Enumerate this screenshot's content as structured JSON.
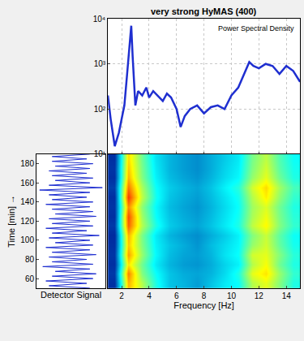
{
  "chart_data": [
    {
      "type": "line",
      "title": "very strong HyMAS (400)",
      "annotation": "Power Spectral Density",
      "x": [
        1.0,
        1.2,
        1.5,
        1.8,
        2.0,
        2.2,
        2.4,
        2.6,
        2.7,
        2.8,
        3.0,
        3.2,
        3.5,
        3.8,
        4.0,
        4.3,
        4.6,
        5.0,
        5.3,
        5.6,
        6.0,
        6.3,
        6.6,
        7.0,
        7.5,
        8.0,
        8.5,
        9.0,
        9.5,
        10.0,
        10.5,
        11.0,
        11.3,
        11.6,
        12.0,
        12.5,
        13.0,
        13.5,
        14.0,
        14.5,
        15.0
      ],
      "values": [
        200,
        60,
        15,
        30,
        60,
        120,
        600,
        3000,
        7000,
        1500,
        120,
        250,
        200,
        300,
        180,
        250,
        200,
        150,
        220,
        180,
        100,
        40,
        70,
        100,
        120,
        80,
        110,
        120,
        100,
        200,
        300,
        700,
        1100,
        900,
        800,
        1000,
        900,
        600,
        900,
        700,
        400
      ],
      "color": "#1f2fd0",
      "xlim": [
        1,
        15
      ],
      "xticks": [
        2,
        4,
        6,
        8,
        10,
        12,
        14
      ],
      "ylim": [
        10,
        10000
      ],
      "yticks": [
        {
          "value": 10,
          "label": "10¹"
        },
        {
          "value": 100,
          "label": "10²"
        },
        {
          "value": 1000,
          "label": "10³"
        },
        {
          "value": 10000,
          "label": "10⁴"
        }
      ],
      "log": "y",
      "grid": true,
      "tick_labels": "y"
    },
    {
      "type": "line",
      "xlabel": "Detector Signal",
      "ylabel": "Time [min] →",
      "x": [
        0.6,
        -0.7,
        0.5,
        -0.8,
        0.7,
        -0.6,
        0.8,
        -0.5,
        0.6,
        -0.9,
        0.7,
        -0.6,
        0.5,
        -0.7,
        0.8,
        -0.6,
        0.6,
        -0.8,
        0.7,
        -0.5,
        0.6,
        -0.7,
        0.9,
        -0.6,
        0.5,
        -0.8,
        0.7,
        -0.6,
        0.6,
        -0.7,
        0.8,
        -0.5,
        0.7,
        -0.6,
        0.6,
        -0.8,
        0.7,
        -0.6,
        0.5,
        -0.7,
        0.6,
        -1.0,
        1.0,
        -0.7,
        0.6,
        -0.5,
        0.7,
        -0.6,
        0.5,
        -0.7,
        0.6,
        -0.5,
        0.7,
        -0.6,
        0.5,
        -0.6,
        0.6
      ],
      "y": [
        50,
        52.5,
        55,
        57.5,
        60,
        62.5,
        65,
        67.5,
        70,
        72.5,
        75,
        77.5,
        80,
        82.5,
        85,
        87.5,
        90,
        92.5,
        95,
        97.5,
        100,
        102.5,
        105,
        107.5,
        110,
        112.5,
        115,
        117.5,
        120,
        122.5,
        125,
        127.5,
        130,
        132.5,
        135,
        137.5,
        140,
        142.5,
        145,
        147.5,
        150,
        152.5,
        155,
        157.5,
        160,
        162.5,
        165,
        167.5,
        170,
        172.5,
        175,
        177.5,
        180,
        182.5,
        185,
        187.5,
        190
      ],
      "color": "#1f2fd0",
      "xlim": [
        -1.1,
        1.1
      ],
      "ylim": [
        50,
        190
      ],
      "yticks": [
        60,
        80,
        100,
        120,
        140,
        160,
        180
      ],
      "grid": false,
      "tick_labels": "y"
    },
    {
      "type": "heatmap",
      "xlabel": "Frequency [Hz]",
      "x": [
        1.5,
        2.5,
        3.5,
        4.5,
        5.5,
        6.5,
        7.5,
        8.5,
        9.5,
        10.5,
        11.5,
        12.5,
        13.5,
        14.5
      ],
      "y": [
        55,
        65,
        75,
        85,
        95,
        105,
        115,
        125,
        135,
        145,
        155,
        165,
        175,
        185
      ],
      "z": [
        [
          0.1,
          0.7,
          0.55,
          0.4,
          0.3,
          0.28,
          0.25,
          0.3,
          0.35,
          0.38,
          0.55,
          0.6,
          0.5,
          0.4
        ],
        [
          0.12,
          0.75,
          0.5,
          0.38,
          0.3,
          0.27,
          0.26,
          0.28,
          0.33,
          0.4,
          0.6,
          0.65,
          0.52,
          0.42
        ],
        [
          0.1,
          0.65,
          0.48,
          0.35,
          0.28,
          0.25,
          0.24,
          0.27,
          0.32,
          0.36,
          0.55,
          0.62,
          0.48,
          0.4
        ],
        [
          0.11,
          0.72,
          0.52,
          0.37,
          0.29,
          0.26,
          0.25,
          0.28,
          0.34,
          0.38,
          0.58,
          0.6,
          0.5,
          0.41
        ],
        [
          0.1,
          0.68,
          0.5,
          0.36,
          0.3,
          0.27,
          0.24,
          0.29,
          0.33,
          0.37,
          0.52,
          0.58,
          0.47,
          0.39
        ],
        [
          0.09,
          0.7,
          0.49,
          0.35,
          0.28,
          0.25,
          0.23,
          0.27,
          0.31,
          0.36,
          0.5,
          0.57,
          0.46,
          0.38
        ],
        [
          0.12,
          0.78,
          0.55,
          0.4,
          0.31,
          0.28,
          0.26,
          0.3,
          0.35,
          0.4,
          0.56,
          0.63,
          0.5,
          0.42
        ],
        [
          0.1,
          0.8,
          0.53,
          0.38,
          0.3,
          0.27,
          0.25,
          0.29,
          0.34,
          0.39,
          0.54,
          0.61,
          0.49,
          0.41
        ],
        [
          0.11,
          0.74,
          0.51,
          0.37,
          0.29,
          0.26,
          0.24,
          0.28,
          0.33,
          0.38,
          0.53,
          0.59,
          0.48,
          0.4
        ],
        [
          0.1,
          0.82,
          0.56,
          0.39,
          0.3,
          0.27,
          0.25,
          0.29,
          0.34,
          0.39,
          0.55,
          0.64,
          0.51,
          0.42
        ],
        [
          0.13,
          0.76,
          0.54,
          0.38,
          0.31,
          0.28,
          0.26,
          0.3,
          0.36,
          0.41,
          0.58,
          0.66,
          0.53,
          0.44
        ],
        [
          0.1,
          0.7,
          0.5,
          0.36,
          0.29,
          0.26,
          0.24,
          0.28,
          0.33,
          0.37,
          0.52,
          0.6,
          0.48,
          0.4
        ],
        [
          0.11,
          0.68,
          0.49,
          0.35,
          0.28,
          0.25,
          0.23,
          0.27,
          0.32,
          0.36,
          0.5,
          0.58,
          0.46,
          0.39
        ],
        [
          0.1,
          0.66,
          0.48,
          0.34,
          0.28,
          0.25,
          0.23,
          0.27,
          0.31,
          0.35,
          0.49,
          0.56,
          0.45,
          0.38
        ]
      ],
      "zlim": [
        0,
        1
      ],
      "xlim": [
        1,
        15
      ],
      "xticks": [
        2,
        4,
        6,
        8,
        10,
        12,
        14
      ],
      "ylim": [
        50,
        190
      ],
      "grid": false,
      "tick_labels": "x"
    }
  ]
}
